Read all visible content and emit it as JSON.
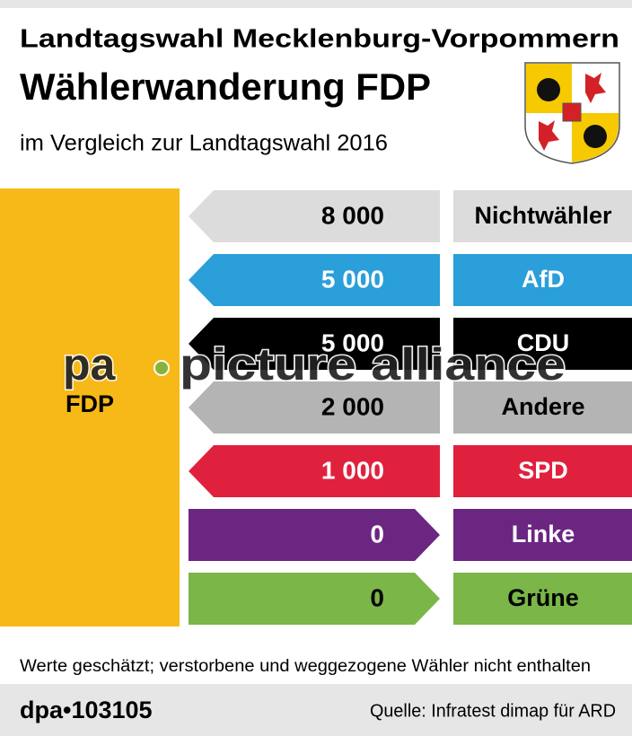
{
  "chart_data": {
    "type": "arrow",
    "title": "Landtagswahl Mecklenburg-Vorpommern",
    "subtitle": "Wählerwanderung FDP",
    "caption": "im Vergleich zur Landtagswahl 2016",
    "target": "FDP",
    "target_color": "#f7b918",
    "categories": [
      "Nichtwähler",
      "AfD",
      "CDU",
      "Andere",
      "SPD",
      "Linke",
      "Grüne"
    ],
    "values": [
      8000,
      5000,
      5000,
      2000,
      1000,
      0,
      0
    ],
    "value_labels": [
      "8 000",
      "5 000",
      "5 000",
      "2 000",
      "1 000",
      "0",
      "0"
    ],
    "directions": [
      "left",
      "left",
      "left",
      "left",
      "left",
      "right",
      "right"
    ],
    "colors": [
      "#dcdcdc",
      "#2a9fd9",
      "#000000",
      "#b4b4b4",
      "#e0213e",
      "#6b2682",
      "#7ab648"
    ],
    "note": "Werte geschätzt; verstorbene und weggezogene Wähler nicht enthalten"
  },
  "footer": {
    "id": "dpa•103105",
    "source": "Quelle: Infratest dimap für ARD"
  },
  "watermark": [
    "pa",
    "picture alliance"
  ]
}
